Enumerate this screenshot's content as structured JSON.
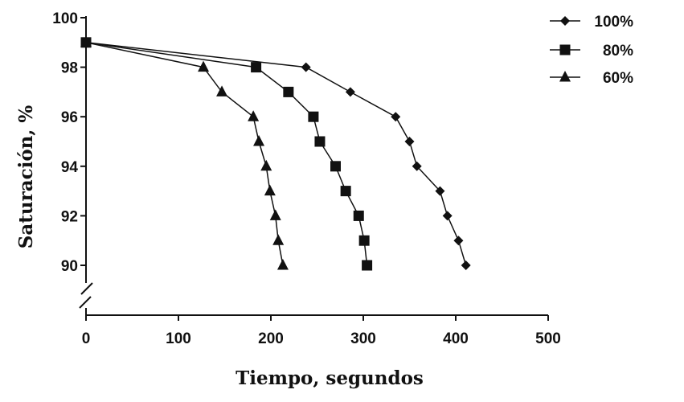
{
  "chart_data": {
    "type": "line",
    "xlabel": "Tiempo, segundos",
    "ylabel": "Saturación, %",
    "xlim": [
      0,
      500
    ],
    "ylim": [
      90,
      100
    ],
    "y_axis_break": true,
    "grid": false,
    "legend_position": "top-right",
    "x_ticks": [
      "0",
      "100",
      "200",
      "300",
      "400",
      "500"
    ],
    "y_ticks": [
      "90",
      "92",
      "94",
      "96",
      "98",
      "100"
    ],
    "series": [
      {
        "name": "100%",
        "marker": "diamond",
        "x": [
          0,
          238,
          286,
          335,
          350,
          358,
          383,
          391,
          403,
          411
        ],
        "y": [
          99,
          98,
          97,
          96,
          95,
          94,
          93,
          92,
          91,
          90
        ]
      },
      {
        "name": "80%",
        "marker": "square",
        "x": [
          0,
          184,
          219,
          246,
          253,
          270,
          281,
          295,
          301,
          304
        ],
        "y": [
          99,
          98,
          97,
          96,
          95,
          94,
          93,
          92,
          91,
          90
        ]
      },
      {
        "name": "60%",
        "marker": "triangle",
        "x": [
          0,
          127,
          147,
          181,
          187,
          195,
          199,
          205,
          208,
          213
        ],
        "y": [
          99,
          98,
          97,
          96,
          95,
          94,
          93,
          92,
          91,
          90
        ]
      }
    ]
  }
}
